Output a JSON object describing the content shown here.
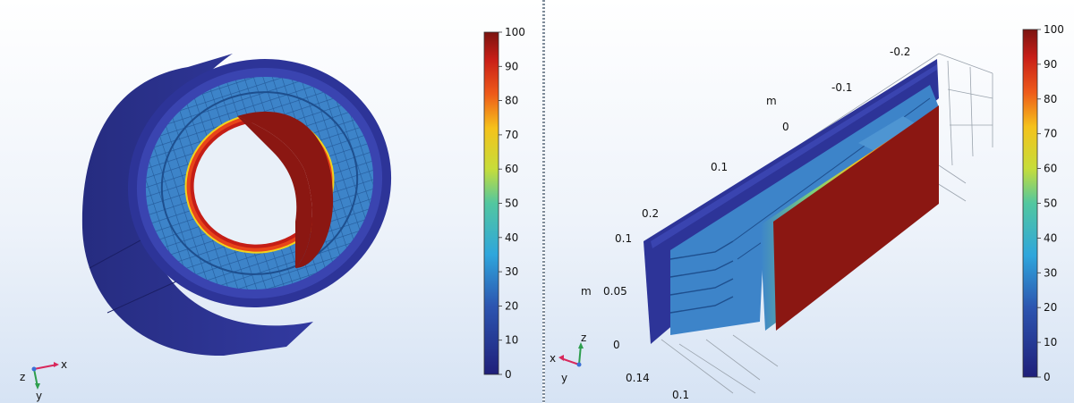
{
  "left_view": {
    "colorbar_ticks": [
      "100",
      "90",
      "80",
      "70",
      "60",
      "50",
      "40",
      "30",
      "20",
      "10",
      "0"
    ],
    "triad": {
      "x": "x",
      "y": "y",
      "z": "z"
    }
  },
  "right_view": {
    "colorbar_ticks": [
      "100",
      "90",
      "80",
      "70",
      "60",
      "50",
      "40",
      "30",
      "20",
      "10",
      "0"
    ],
    "axis_unit_top": "m",
    "axis_unit_left": "m",
    "top_axis_ticks": [
      "-0.2",
      "-0.1",
      "0",
      "0.1",
      "0.2"
    ],
    "left_axis_ticks": [
      "0.1",
      "0.05",
      "0"
    ],
    "bottom_axis_ticks": [
      "0.14",
      "0.1"
    ],
    "triad": {
      "x": "x",
      "y": "y",
      "z": "z"
    }
  },
  "colors": {
    "cold": "#2b2f8f",
    "mid": "#3b83cc",
    "hot": "#8b1712",
    "background_top": "#ffffff",
    "background_bottom": "#d6e3f4"
  }
}
